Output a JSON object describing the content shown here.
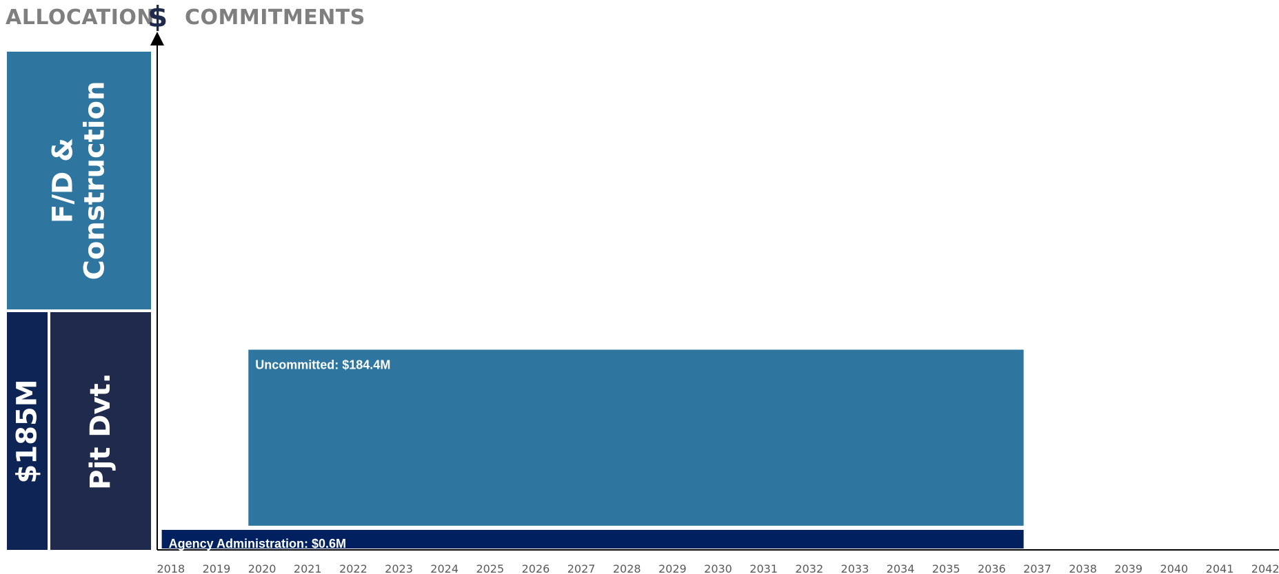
{
  "header": {
    "allocation": "ALLOCATION",
    "dollar": "$",
    "commitments": "COMMITMENTS"
  },
  "allocation_blocks": {
    "fd_line1": "F/D &",
    "fd_line2": "Construction",
    "total": "$185M",
    "pjt": "Pjt Dvt."
  },
  "colors": {
    "uncommitted": "#2e75a0",
    "agency_admin": "#002060",
    "fd_block": "#2e75a0",
    "total_block": "#0e2455",
    "pjt_block": "#1f2a4c"
  },
  "chart_data": {
    "type": "bar",
    "orientation": "horizontal-timeline",
    "x_ticks": [
      "2018",
      "2019",
      "2020",
      "2021",
      "2022",
      "2023",
      "2024",
      "2025",
      "2026",
      "2027",
      "2028",
      "2029",
      "2030",
      "2031",
      "2032",
      "2033",
      "2034",
      "2035",
      "2036",
      "2037",
      "2038",
      "2039",
      "2040",
      "2041",
      "2042"
    ],
    "xlim": [
      2017.7,
      2042.3
    ],
    "ylim": [
      0,
      185
    ],
    "series": [
      {
        "name": "Agency Administration",
        "label": "Agency Administration: $0.6M",
        "start": 2017.8,
        "end": 2036.7,
        "base": 0,
        "top": 9
      },
      {
        "name": "Uncommitted",
        "label": "Uncommitted: $184.4M",
        "start": 2019.7,
        "end": 2036.7,
        "base": 11,
        "top": 96
      }
    ]
  }
}
